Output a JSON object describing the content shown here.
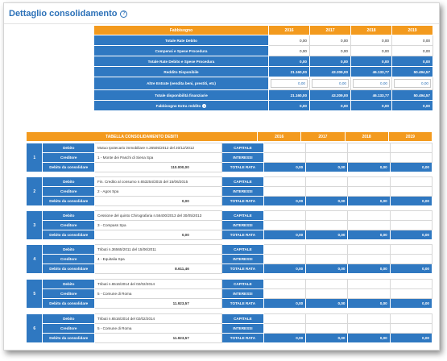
{
  "page": {
    "title": "Dettaglio consolidamento",
    "help_icon": "question-circle-icon"
  },
  "fabbisogno": {
    "header": "Fabbisogno",
    "years": [
      "2016",
      "2017",
      "2018",
      "2019"
    ],
    "rows": [
      {
        "label": "Totale Rate Debito",
        "values": [
          "0,00",
          "0,00",
          "0,00",
          "0,00"
        ],
        "style": "white"
      },
      {
        "label": "Compensi e Spese Procedura",
        "values": [
          "0,00",
          "0,00",
          "0,00",
          "0,00"
        ],
        "style": "white"
      },
      {
        "label": "Totale Rate Debito e Spese Procedura",
        "values": [
          "0,00",
          "0,00",
          "0,00",
          "0,00"
        ],
        "style": "blue"
      },
      {
        "label": "Reddito Disponibile",
        "values": [
          "21.160,00",
          "43.209,00",
          "46.133,77",
          "50.494,57"
        ],
        "style": "blue"
      },
      {
        "label": "Altre Entrate (vendita beni, prestiti, etc)",
        "values": [
          "0,00",
          "0,00",
          "0,00",
          "0,00"
        ],
        "style": "input"
      },
      {
        "label": "Totale disponibilità finanziarie",
        "values": [
          "21.160,00",
          "43.209,00",
          "46.133,77",
          "50.494,57"
        ],
        "style": "blue"
      },
      {
        "label": "Fabbisogno Extra reddito",
        "values": [
          "0,00",
          "0,00",
          "0,00",
          "0,00"
        ],
        "style": "blue",
        "info": true
      }
    ]
  },
  "debiti": {
    "header": "TABELLA CONSOLIDAMENTO DEBITI",
    "years": [
      "2016",
      "2017",
      "2018",
      "2019"
    ],
    "labels": {
      "debito": "Debito",
      "creditore": "Creditore",
      "consolidare": "Debito da consolidare",
      "capitale": "CAPITALE",
      "interessi": "INTERESSI",
      "totale_rata": "TOTALE RATA"
    },
    "items": [
      {
        "num": "1",
        "debito": "Mutuo Ipotecario immobiliare n.26505/2012 del 20/12/2012",
        "creditore": "1 - Monte dei Paschi di Siena Spa",
        "importo": "110.000,00",
        "totali": [
          "0,00",
          "0,00",
          "0,00",
          "0,00"
        ]
      },
      {
        "num": "2",
        "debito": "Fin. Credito al consumo n.653254/2015 del 15/06/2015",
        "creditore": "2 - Agos Spa",
        "importo": "0,00",
        "totali": [
          "0,00",
          "0,00",
          "0,00",
          "0,00"
        ]
      },
      {
        "num": "3",
        "debito": "Cessione del quinto Chirografaria n.56400/2013 del 30/05/2013",
        "creditore": "3 - Compass Spa",
        "importo": "0,00",
        "totali": [
          "0,00",
          "0,00",
          "0,00",
          "0,00"
        ]
      },
      {
        "num": "4",
        "debito": "Tributi n.36565/2011 del 15/06/2011",
        "creditore": "4 - Equitalia Spa",
        "importo": "8.611,46",
        "totali": [
          "0,00",
          "0,00",
          "0,00",
          "0,00"
        ]
      },
      {
        "num": "5",
        "debito": "Tributi n.6516/2014 del 02/02/2014",
        "creditore": "5 - Comune di Roma",
        "importo": "11.923,57",
        "totali": [
          "0,00",
          "0,00",
          "0,00",
          "0,00"
        ]
      },
      {
        "num": "6",
        "debito": "Tributi n.6516/2014 del 02/02/2014",
        "creditore": "5 - Comune di Roma",
        "importo": "11.923,57",
        "totali": [
          "0,00",
          "0,00",
          "0,00",
          "0,00"
        ]
      }
    ]
  }
}
